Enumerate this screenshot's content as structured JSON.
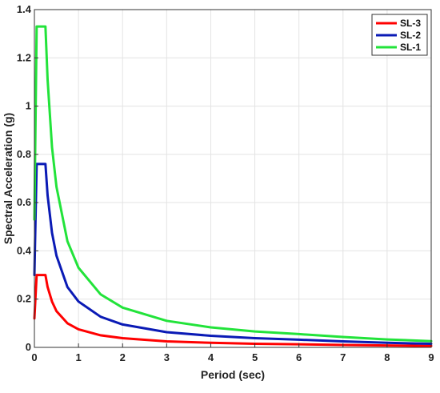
{
  "chart_data": {
    "type": "line",
    "title": "",
    "xlabel": "Period (sec)",
    "ylabel": "Spectral Acceleration (g)",
    "xlim": [
      0,
      9
    ],
    "ylim": [
      0,
      1.4
    ],
    "xticks": [
      0,
      1,
      2,
      3,
      4,
      5,
      6,
      7,
      8,
      9
    ],
    "yticks": [
      0,
      0.2,
      0.4,
      0.6,
      0.8,
      1,
      1.2,
      1.4
    ],
    "xtick_labels": [
      "0",
      "1",
      "2",
      "3",
      "4",
      "5",
      "6",
      "7",
      "8",
      "9"
    ],
    "ytick_labels": [
      "0",
      "0.2",
      "0.4",
      "0.6",
      "0.8",
      "1",
      "1.2",
      "1.4"
    ],
    "grid": true,
    "legend_position": "top-right",
    "series": [
      {
        "name": "SL-3",
        "color": "#ff0000",
        "x": [
          0,
          0.05,
          0.25,
          0.3,
          0.4,
          0.5,
          0.75,
          1,
          1.5,
          2,
          3,
          4,
          5,
          6,
          7,
          8,
          9
        ],
        "y": [
          0.12,
          0.3,
          0.3,
          0.25,
          0.19,
          0.15,
          0.1,
          0.075,
          0.05,
          0.038,
          0.025,
          0.019,
          0.015,
          0.013,
          0.01,
          0.008,
          0.006
        ]
      },
      {
        "name": "SL-2",
        "color": "#0a1ab5",
        "x": [
          0,
          0.05,
          0.25,
          0.3,
          0.4,
          0.5,
          0.75,
          1,
          1.5,
          2,
          3,
          4,
          5,
          6,
          7,
          8,
          9
        ],
        "y": [
          0.3,
          0.76,
          0.76,
          0.63,
          0.475,
          0.38,
          0.25,
          0.19,
          0.127,
          0.095,
          0.063,
          0.048,
          0.038,
          0.032,
          0.025,
          0.019,
          0.015
        ]
      },
      {
        "name": "SL-1",
        "color": "#22e33a",
        "x": [
          0,
          0.05,
          0.25,
          0.3,
          0.4,
          0.5,
          0.75,
          1,
          1.5,
          2,
          3,
          4,
          5,
          6,
          7,
          8,
          9
        ],
        "y": [
          0.53,
          1.33,
          1.33,
          1.11,
          0.83,
          0.665,
          0.44,
          0.33,
          0.22,
          0.165,
          0.11,
          0.083,
          0.066,
          0.055,
          0.043,
          0.033,
          0.026
        ]
      }
    ]
  }
}
